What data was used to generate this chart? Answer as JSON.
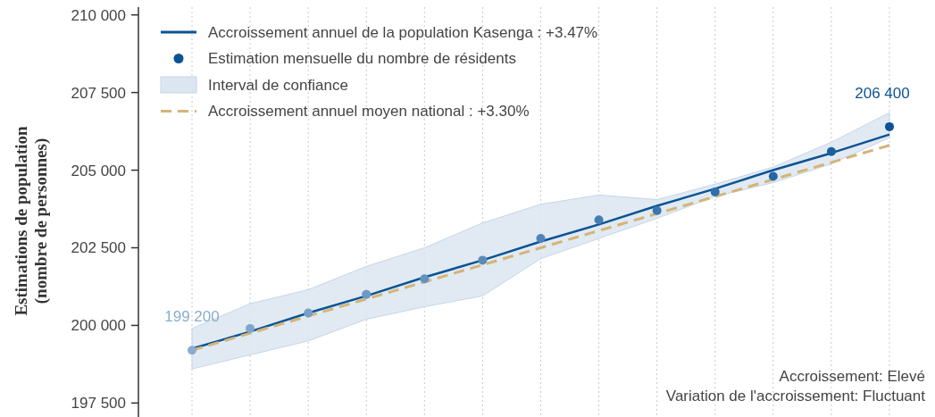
{
  "chart_data": {
    "type": "line",
    "ylabel": "Estimations de population\n(nombre de personnes)",
    "categories": [
      null,
      null,
      null,
      null,
      null,
      null,
      null,
      null,
      null,
      null,
      null,
      null,
      null
    ],
    "ylim": [
      197050,
      210250
    ],
    "yticks": [
      {
        "value": 197500,
        "label": "197 500"
      },
      {
        "value": 200000,
        "label": "200 000"
      },
      {
        "value": 202500,
        "label": "202 500"
      },
      {
        "value": 205000,
        "label": "205 000"
      },
      {
        "value": 207500,
        "label": "207 500"
      },
      {
        "value": 210000,
        "label": "210 000"
      }
    ],
    "grid": "x",
    "legend": "top left",
    "series": [
      {
        "name": "Accroissement annuel de la population Kasenga : +3.47%",
        "color": "#0b5394",
        "line_style": "solid",
        "values": [
          199250,
          199800,
          200400,
          200950,
          201550,
          202100,
          202700,
          203250,
          203850,
          204400,
          205000,
          205550,
          206150
        ]
      },
      {
        "type": "scatter",
        "name": "Estimation mensuelle du nombre de résidents",
        "color": "#0b5394",
        "marker": "circle",
        "colors": [
          "#8aaccf",
          "#80a5cb",
          "#76a0c8",
          "#6c99c4",
          "#6292c0",
          "#588bbc",
          "#4e84b8",
          "#447db4",
          "#3a76b0",
          "#2f6fac",
          "#2566a6",
          "#1a5ea0",
          "#0b5394"
        ],
        "values": [
          199200,
          199900,
          200400,
          201000,
          201500,
          202100,
          202800,
          203400,
          203700,
          204300,
          204800,
          205600,
          206400
        ],
        "value_labels": [
          "199 200",
          null,
          null,
          null,
          null,
          null,
          null,
          null,
          null,
          null,
          null,
          null,
          "206 400"
        ]
      },
      {
        "type": "area",
        "name": "Interval de confiance",
        "color": "#dce6f1",
        "values": [
          null,
          null,
          null,
          null,
          null,
          null,
          null,
          null,
          null,
          null,
          null,
          null,
          null
        ],
        "lower": [
          198600,
          199050,
          199500,
          200200,
          200600,
          200950,
          202150,
          202800,
          203450,
          204150,
          204600,
          205200,
          206050
        ],
        "upper": [
          199900,
          200700,
          201150,
          201900,
          202500,
          203300,
          203900,
          204200,
          204050,
          204550,
          205100,
          205900,
          206850
        ]
      },
      {
        "type": "line",
        "name": "Accroissement annuel moyen national : +3.30%",
        "color": "#d4b477",
        "line_style": "dashed",
        "values": [
          199200,
          199750,
          200300,
          200850,
          201400,
          201950,
          202500,
          203050,
          203600,
          204150,
          204700,
          205250,
          205800
        ]
      }
    ],
    "annotations": [
      "Accroissement: Elevé",
      "Variation de l'accroissement: Fluctuant"
    ]
  }
}
